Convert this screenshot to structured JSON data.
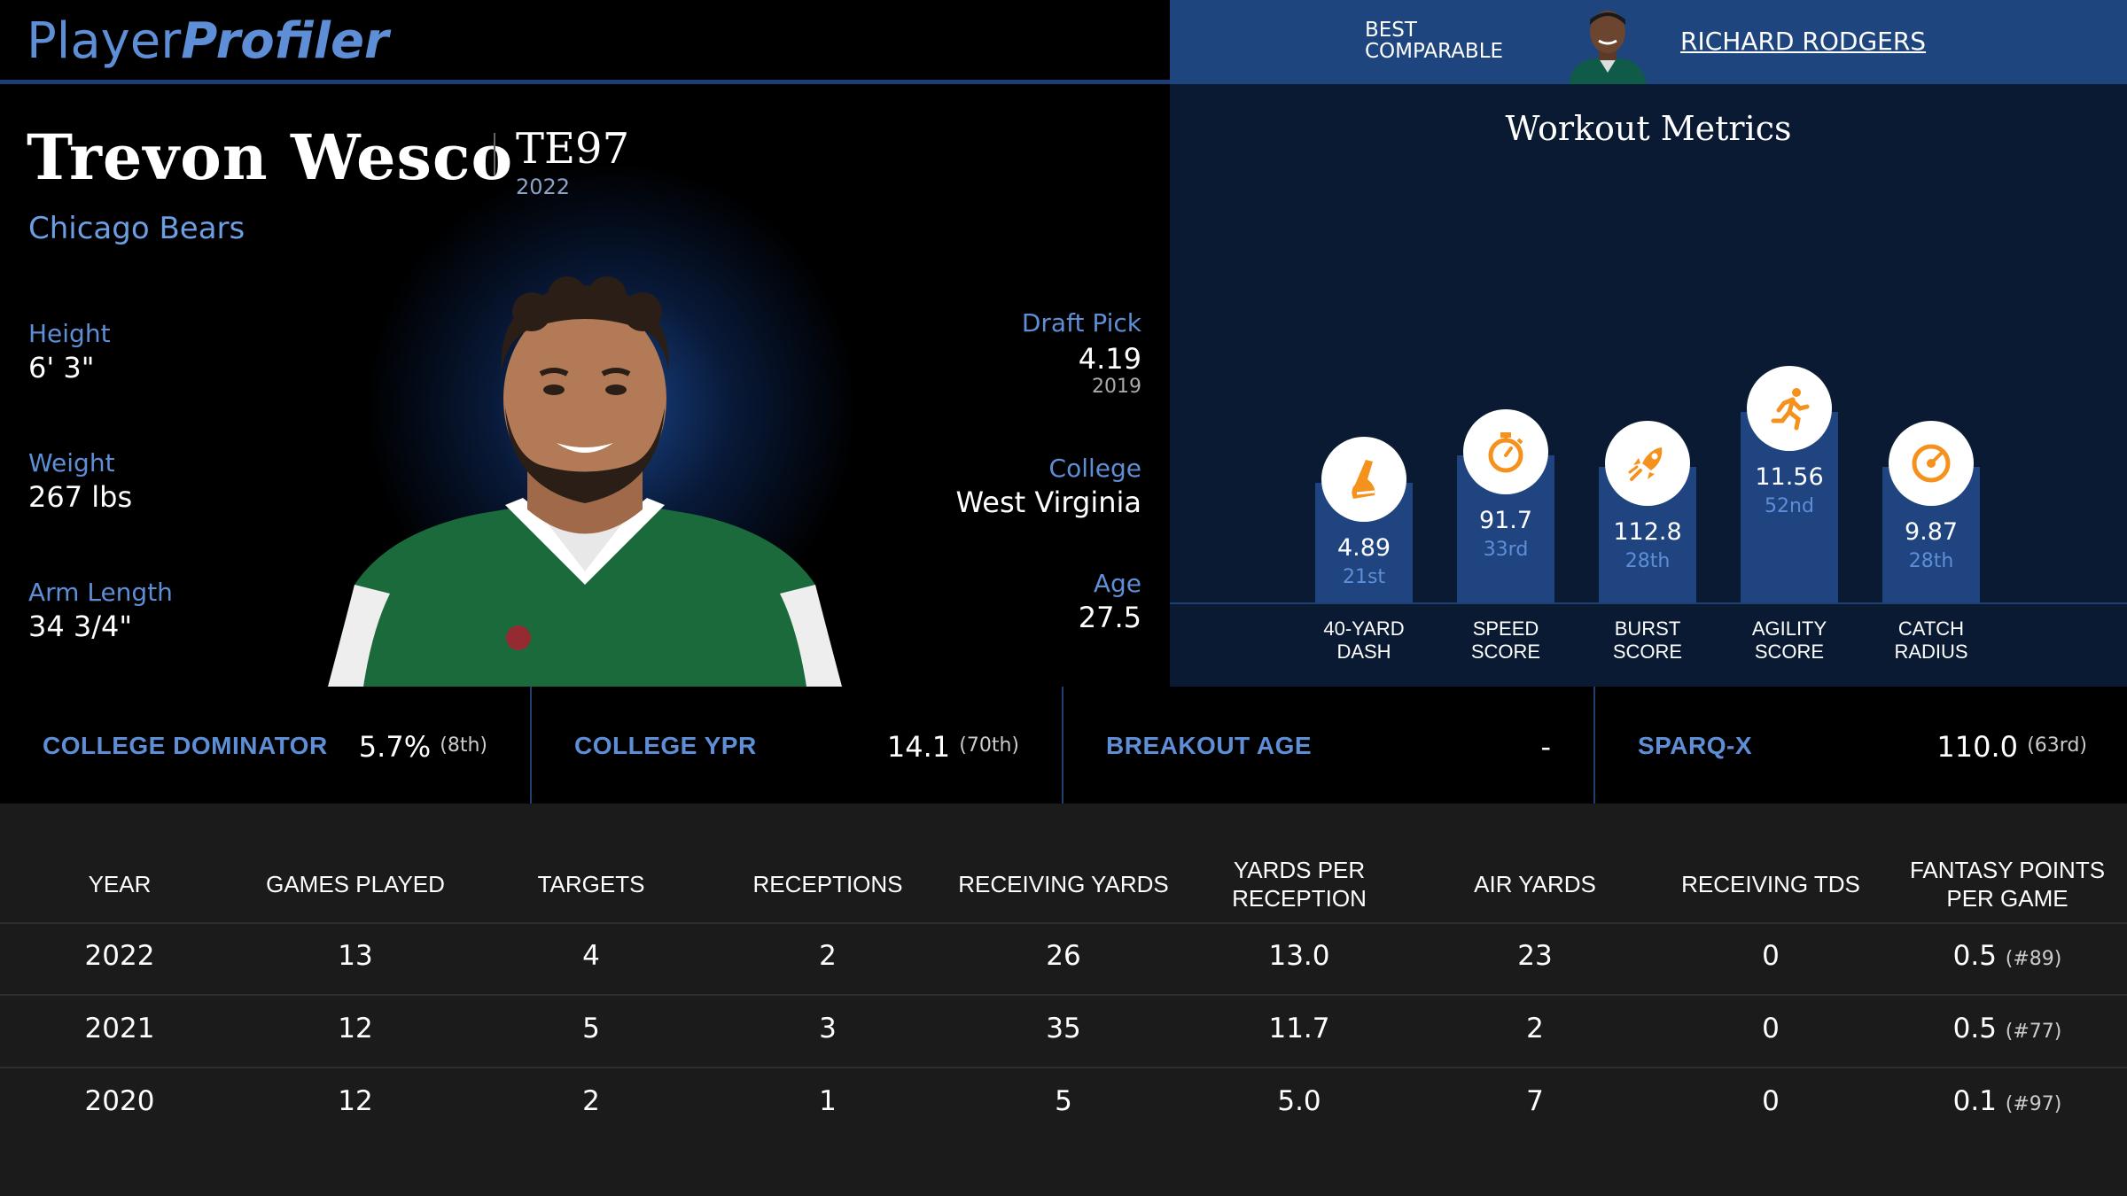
{
  "header": {
    "logo_part1": "Player",
    "logo_part2": "Profiler",
    "best_comparable_label": "BEST\nCOMPARABLE",
    "best_comparable_name": "RICHARD RODGERS"
  },
  "player": {
    "name": "Trevon Wesco",
    "position": "TE97",
    "season": "2022",
    "team": "Chicago Bears",
    "height_label": "Height",
    "height": "6' 3\"",
    "weight_label": "Weight",
    "weight": "267 lbs",
    "arm_label": "Arm Length",
    "arm": "34 3/4\"",
    "draft_label": "Draft Pick",
    "draft_pick": "4.19",
    "draft_year": "2019",
    "college_label": "College",
    "college": "West Virginia",
    "age_label": "Age",
    "age": "27.5"
  },
  "workout": {
    "title": "Workout Metrics",
    "metrics": [
      {
        "label": "40-YARD\nDASH",
        "value": "4.89",
        "percentile": "21st",
        "pct": 21,
        "icon": "shoe-icon"
      },
      {
        "label": "SPEED\nSCORE",
        "value": "91.7",
        "percentile": "33rd",
        "pct": 33,
        "icon": "stopwatch-icon"
      },
      {
        "label": "BURST\nSCORE",
        "value": "112.8",
        "percentile": "28th",
        "pct": 28,
        "icon": "rocket-icon"
      },
      {
        "label": "AGILITY\nSCORE",
        "value": "11.56",
        "percentile": "52nd",
        "pct": 52,
        "icon": "runner-icon"
      },
      {
        "label": "CATCH\nRADIUS",
        "value": "9.87",
        "percentile": "28th",
        "pct": 28,
        "icon": "target-icon"
      }
    ]
  },
  "advanced": [
    {
      "label": "COLLEGE DOMINATOR",
      "value": "5.7%",
      "rank": "(8th)"
    },
    {
      "label": "COLLEGE YPR",
      "value": "14.1",
      "rank": "(70th)"
    },
    {
      "label": "BREAKOUT AGE",
      "value": "-",
      "rank": ""
    },
    {
      "label": "SPARQ-X",
      "value": "110.0",
      "rank": "(63rd)"
    }
  ],
  "table": {
    "headers": [
      "YEAR",
      "GAMES PLAYED",
      "TARGETS",
      "RECEPTIONS",
      "RECEIVING YARDS",
      "YARDS PER RECEPTION",
      "AIR YARDS",
      "RECEIVING TDS",
      "FANTASY POINTS PER GAME"
    ],
    "rows": [
      {
        "cells": [
          "2022",
          "13",
          "4",
          "2",
          "26",
          "13.0",
          "23",
          "0",
          "0.5"
        ],
        "rank": "(#89)"
      },
      {
        "cells": [
          "2021",
          "12",
          "5",
          "3",
          "35",
          "11.7",
          "2",
          "0",
          "0.5"
        ],
        "rank": "(#77)"
      },
      {
        "cells": [
          "2020",
          "12",
          "2",
          "1",
          "5",
          "5.0",
          "7",
          "0",
          "0.1"
        ],
        "rank": "(#97)"
      }
    ]
  },
  "colors": {
    "accent": "#5e8ed6",
    "header_blue": "#1f457e",
    "bar_blue": "#1f4480",
    "icon_orange": "#f5921e"
  }
}
